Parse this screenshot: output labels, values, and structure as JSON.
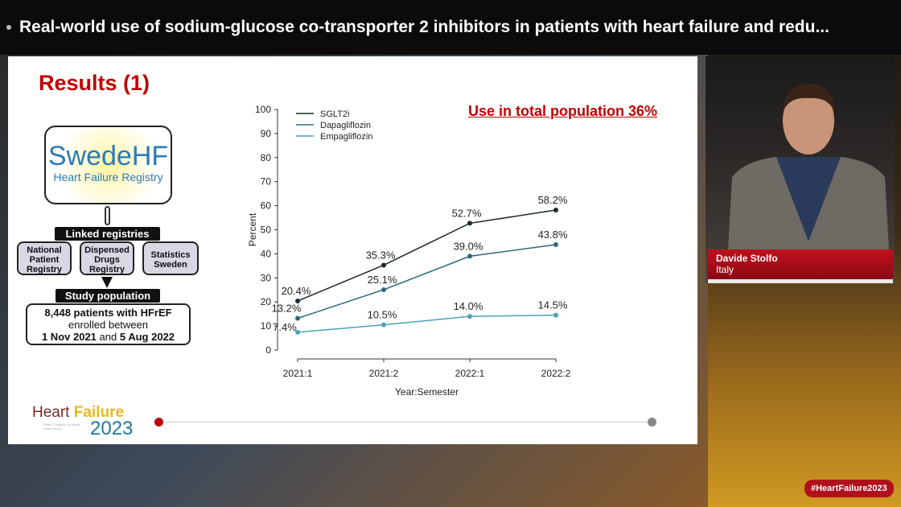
{
  "header": {
    "title": "Real-world use of sodium-glucose co-transporter 2 inhibitors in patients with heart failure and redu..."
  },
  "slide": {
    "title": "Results (1)",
    "note": "Use in total population 36%",
    "flow": {
      "logo_main": "SwedeHF",
      "logo_sub": "Heart Failure Registry",
      "linked": "Linked registries",
      "registries": [
        [
          "National",
          "Patient",
          "Registry"
        ],
        [
          "Dispensed",
          "Drugs",
          "Registry"
        ],
        [
          "Statistics",
          "Sweden"
        ]
      ],
      "study": "Study population",
      "count": "8,448 patients with HFrEF",
      "enrolled": "enrolled between",
      "dates": [
        "1 Nov 2021",
        "and",
        "5 Aug 2022"
      ]
    },
    "footer_logo": {
      "word1": "Heart",
      "word2": "Failure",
      "year": "2023",
      "sub": "World Congress on Acute Heart Failure"
    }
  },
  "speaker": {
    "name": "Davide Stolfo",
    "country": "Italy"
  },
  "hashtag": "#HeartFailure2023",
  "chart_data": {
    "type": "line",
    "xlabel": "Year:Semester",
    "ylabel": "Percent",
    "categories": [
      "2021:1",
      "2021:2",
      "2022:1",
      "2022:2"
    ],
    "ylim": [
      0,
      100
    ],
    "yticks": [
      0,
      10,
      20,
      30,
      40,
      50,
      60,
      70,
      80,
      90,
      100
    ],
    "legend": "top-left",
    "series": [
      {
        "name": "SGLT2i",
        "values": [
          20.4,
          35.3,
          52.7,
          58.2
        ],
        "labels": [
          "20.4%",
          "35.3%",
          "52.7%",
          "58.2%"
        ],
        "color": "#1c2a2e"
      },
      {
        "name": "Dapagliflozin",
        "values": [
          13.2,
          25.1,
          39.0,
          43.8
        ],
        "labels": [
          "13.2%",
          "25.1%",
          "39.0%",
          "43.8%"
        ],
        "color": "#2b6a7c"
      },
      {
        "name": "Empagliflozin",
        "values": [
          7.4,
          10.5,
          14.0,
          14.5
        ],
        "labels": [
          "7.4%",
          "10.5%",
          "14.0%",
          "14.5%"
        ],
        "color": "#4aa3bb"
      }
    ]
  }
}
